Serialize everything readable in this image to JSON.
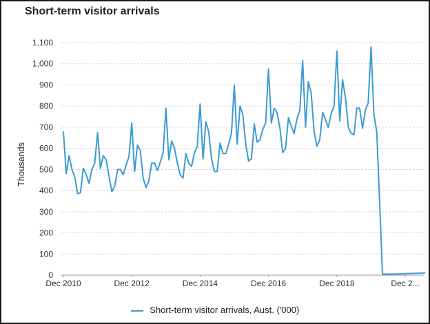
{
  "chart_data": {
    "type": "line",
    "title": "Short-term visitor arrivals",
    "ylabel": "Thousands",
    "xlabel": "",
    "ylim": [
      0,
      1100
    ],
    "yticks": [
      "0",
      "100",
      "200",
      "300",
      "400",
      "500",
      "600",
      "700",
      "800",
      "900",
      "1,000",
      "1,100"
    ],
    "xtick_labels": [
      "Dec 2010",
      "Dec 2012",
      "Dec 2014",
      "Dec 2016",
      "Dec 2018",
      "Dec 2..."
    ],
    "grid": true,
    "legend_position": "bottom",
    "color": "#3b9ad4",
    "series": [
      {
        "name": "Short-term visitor arrivals, Aust. ('000)",
        "values": [
          680,
          480,
          565,
          500,
          465,
          385,
          390,
          505,
          475,
          435,
          500,
          530,
          675,
          505,
          565,
          545,
          470,
          395,
          420,
          500,
          500,
          475,
          520,
          560,
          720,
          490,
          615,
          590,
          460,
          415,
          445,
          530,
          530,
          495,
          535,
          580,
          790,
          545,
          635,
          600,
          530,
          475,
          460,
          575,
          530,
          515,
          580,
          610,
          810,
          550,
          725,
          680,
          550,
          490,
          490,
          625,
          575,
          575,
          620,
          670,
          900,
          620,
          800,
          760,
          620,
          540,
          550,
          715,
          630,
          640,
          690,
          720,
          975,
          720,
          790,
          770,
          695,
          580,
          600,
          745,
          705,
          670,
          740,
          780,
          1015,
          700,
          915,
          860,
          680,
          610,
          640,
          770,
          735,
          700,
          765,
          800,
          1060,
          730,
          925,
          840,
          700,
          670,
          665,
          790,
          790,
          695,
          780,
          815,
          1080,
          760,
          680,
          350,
          5,
          5,
          5,
          5,
          5,
          6,
          6,
          6,
          7,
          7,
          8,
          8,
          9,
          9,
          10,
          10
        ]
      }
    ]
  }
}
